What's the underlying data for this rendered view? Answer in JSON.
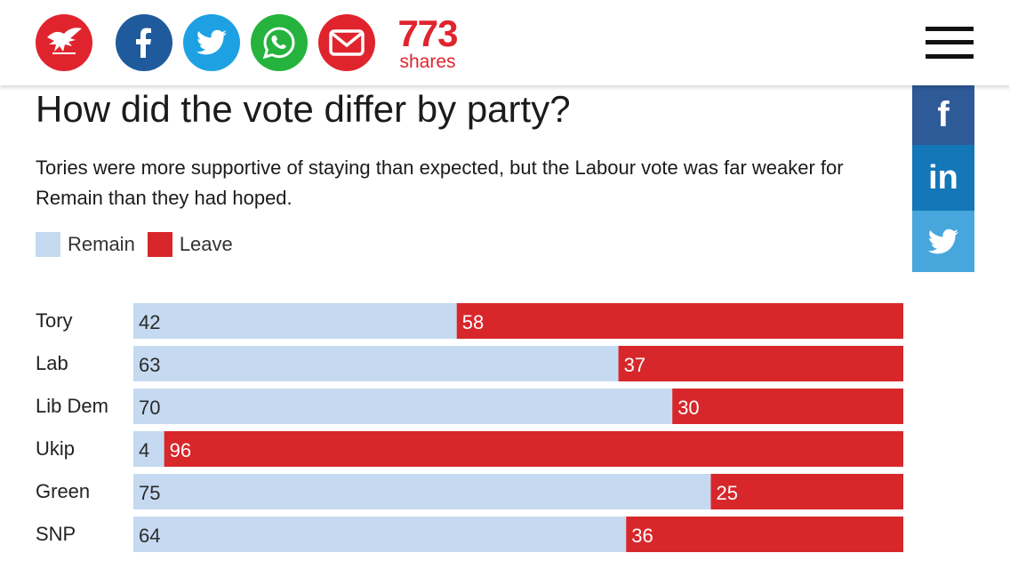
{
  "header": {
    "share_count": "773",
    "share_label": "shares",
    "icons": [
      "independent-eagle-logo",
      "facebook-icon",
      "twitter-icon",
      "whatsapp-icon",
      "email-icon",
      "hamburger-menu-icon"
    ]
  },
  "side_share": {
    "facebook": "f",
    "linkedin": "in"
  },
  "colors": {
    "remain": "#c5daf1",
    "leave": "#d7272b",
    "brand": "#e0242e"
  },
  "chart_data": {
    "type": "bar",
    "stacked": true,
    "orientation": "horizontal",
    "title": "How did the vote differ by party?",
    "subtitle": "Tories were more supportive of staying than expected, but the Labour vote was far weaker for Remain than they had hoped.",
    "legend_position": "top-left",
    "categories": [
      "Tory",
      "Lab",
      "Lib Dem",
      "Ukip",
      "Green",
      "SNP"
    ],
    "series": [
      {
        "name": "Remain",
        "values": [
          42,
          63,
          70,
          4,
          75,
          64
        ]
      },
      {
        "name": "Leave",
        "values": [
          58,
          37,
          30,
          96,
          25,
          36
        ]
      }
    ],
    "xlim": [
      0,
      100
    ]
  }
}
